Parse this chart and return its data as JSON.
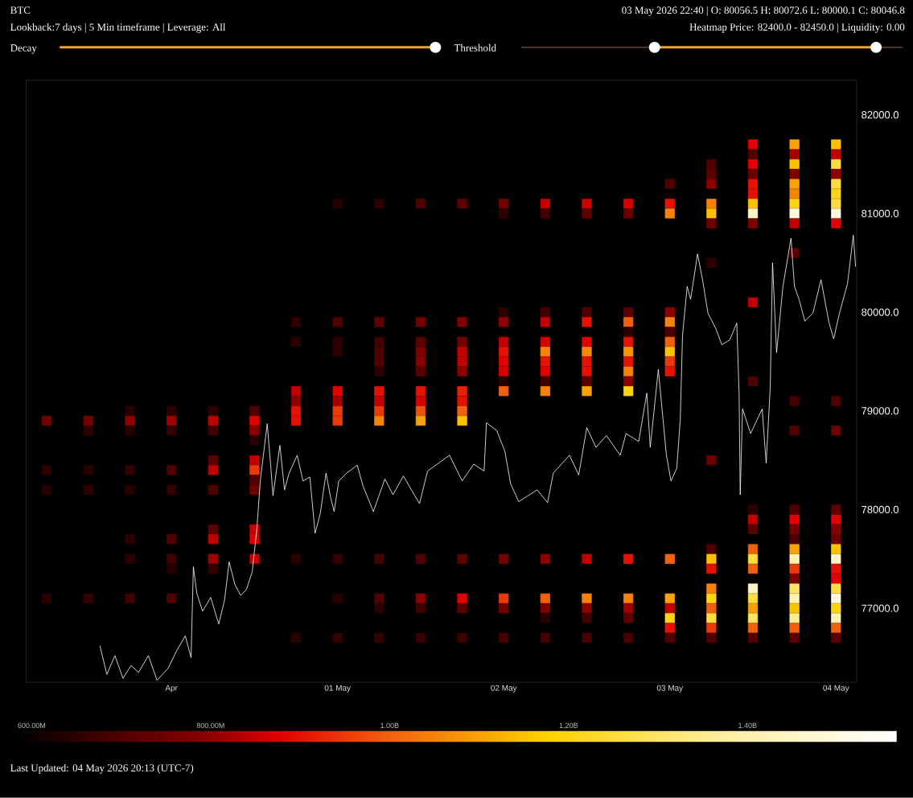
{
  "chart_data": {
    "type": "line",
    "title": "BTC",
    "subtitle": "Lookback:7 days | 5 Min timeframe | Leverage: All",
    "annotations": [
      "03 May 2026 22:40 | O: 80056.5 H: 80072.6 L: 80000.1 C: 80046.8",
      "Heatmap Price: 82400.0 - 82450.0 | Liquidity: 0.00",
      "Decay",
      "Threshold",
      "Last Updated: 04 May 2026 20:13 (UTC-7)"
    ],
    "xlim": [
      "2026-04-29T03:00",
      "2026-05-04T03:00"
    ],
    "xticks": [
      {
        "value": "2026-04-30",
        "label": "Apr"
      },
      {
        "value": "2026-05-01",
        "label": "01 May"
      },
      {
        "value": "2026-05-02",
        "label": "02 May"
      },
      {
        "value": "2026-05-03",
        "label": "03 May"
      },
      {
        "value": "2026-05-04",
        "label": "04 May"
      }
    ],
    "ylim": [
      76250,
      82350
    ],
    "yticks": [
      {
        "value": 77000,
        "label": "77000.0"
      },
      {
        "value": 78000,
        "label": "78000.0"
      },
      {
        "value": 79000,
        "label": "79000.0"
      },
      {
        "value": 80000,
        "label": "80000.0"
      },
      {
        "value": 81000,
        "label": "81000.0"
      },
      {
        "value": 82000,
        "label": "82000.0"
      }
    ],
    "clim": [
      583000000,
      1567000000
    ],
    "cticks": [
      {
        "value": 600000000,
        "label": "600.00M"
      },
      {
        "value": 800000000,
        "label": "800.00M"
      },
      {
        "value": 1000000000,
        "label": "1.00B"
      },
      {
        "value": 1200000000,
        "label": "1.20B"
      },
      {
        "value": 1400000000,
        "label": "1.40B"
      }
    ],
    "series": [
      {
        "type": "scatter",
        "marker": "square",
        "x": [
          "2026-05-03T12:00",
          "2026-05-03T18:00",
          "2026-05-04T00:00"
        ],
        "values": [
          81700,
          81700,
          81700
        ],
        "cvalues": [
          880000000,
          1100000000,
          1150000000
        ],
        "colors": [
          "#e00100",
          "#f9a207",
          "#fdc102"
        ]
      },
      {
        "type": "scatter",
        "marker": "square",
        "x": [
          "2026-05-03T12:00",
          "2026-05-03T18:00",
          "2026-05-04T00:00"
        ],
        "values": [
          81600,
          81600,
          81600
        ],
        "cvalues": [
          700000000,
          820000000,
          850000000
        ],
        "colors": [
          "#4f0000",
          "#a20000",
          "#c20000"
        ]
      },
      {
        "type": "scatter",
        "marker": "square",
        "x": [
          "2026-05-03T06:00",
          "2026-05-03T12:00",
          "2026-05-03T18:00",
          "2026-05-04T00:00"
        ],
        "values": [
          81500,
          81500,
          81500,
          81500
        ],
        "cvalues": [
          700000000,
          880000000,
          1150000000,
          1250000000
        ],
        "colors": [
          "#4f0000",
          "#e00100",
          "#fdc102",
          "#ffdc3e"
        ]
      },
      {
        "type": "scatter",
        "marker": "square",
        "x": [
          "2026-05-03T06:00",
          "2026-05-03T12:00",
          "2026-05-03T18:00",
          "2026-05-04T00:00"
        ],
        "values": [
          81400,
          81400,
          81400,
          81400
        ],
        "cvalues": [
          720000000,
          740000000,
          780000000,
          800000000
        ],
        "colors": [
          "#5c0000",
          "#680000",
          "#800000",
          "#8d0000"
        ]
      },
      {
        "type": "scatter",
        "marker": "square",
        "x": [
          "2026-05-03T00:00",
          "2026-05-03T06:00",
          "2026-05-03T12:00",
          "2026-05-03T18:00",
          "2026-05-04T00:00"
        ],
        "values": [
          81300,
          81300,
          81300,
          81300,
          81300
        ],
        "cvalues": [
          700000000,
          800000000,
          900000000,
          1100000000,
          1250000000
        ],
        "colors": [
          "#4f0000",
          "#8d0000",
          "#e31203",
          "#f9a207",
          "#ffdc3e"
        ]
      },
      {
        "type": "scatter",
        "marker": "square",
        "x": [
          "2026-05-03T12:00",
          "2026-05-03T18:00",
          "2026-05-04T00:00"
        ],
        "values": [
          81200,
          81200,
          81200
        ],
        "cvalues": [
          900000000,
          1050000000,
          1200000000
        ],
        "colors": [
          "#e31203",
          "#f5820b",
          "#ffd416"
        ]
      },
      {
        "type": "scatter",
        "marker": "square",
        "x": [
          "2026-05-01T00:00",
          "2026-05-01T06:00",
          "2026-05-01T12:00",
          "2026-05-01T18:00",
          "2026-05-02T00:00",
          "2026-05-02T06:00",
          "2026-05-02T12:00",
          "2026-05-02T18:00",
          "2026-05-03T00:00",
          "2026-05-03T06:00",
          "2026-05-03T12:00",
          "2026-05-03T18:00",
          "2026-05-04T00:00"
        ],
        "values": [
          81100,
          81100,
          81100,
          81100,
          81100,
          81100,
          81100,
          81100,
          81100,
          81100,
          81100,
          81100,
          81100
        ],
        "cvalues": [
          640000000,
          650000000,
          700000000,
          720000000,
          760000000,
          850000000,
          860000000,
          870000000,
          900000000,
          1050000000,
          1150000000,
          1200000000,
          1250000000
        ],
        "colors": [
          "#270000",
          "#2d0000",
          "#4f0000",
          "#5c0000",
          "#740000",
          "#c20000",
          "#cd0000",
          "#d70000",
          "#e31203",
          "#f5820b",
          "#fdc102",
          "#ffd416",
          "#ffdc3e"
        ]
      },
      {
        "type": "scatter",
        "marker": "square",
        "x": [
          "2026-05-02T00:00",
          "2026-05-02T06:00",
          "2026-05-02T12:00",
          "2026-05-02T18:00",
          "2026-05-03T00:00",
          "2026-05-03T06:00",
          "2026-05-03T12:00",
          "2026-05-03T18:00",
          "2026-05-04T00:00"
        ],
        "values": [
          81000,
          81000,
          81000,
          81000,
          81000,
          81000,
          81000,
          81000,
          81000
        ],
        "cvalues": [
          650000000,
          680000000,
          720000000,
          740000000,
          1050000000,
          1150000000,
          1450000000,
          1500000000,
          1500000000
        ],
        "colors": [
          "#2d0000",
          "#420000",
          "#5c0000",
          "#680000",
          "#f5820b",
          "#fdc102",
          "#fff5c7",
          "#fff9df",
          "#fff9df"
        ]
      },
      {
        "type": "scatter",
        "marker": "square",
        "x": [
          "2026-05-03T06:00",
          "2026-05-03T12:00",
          "2026-05-03T18:00",
          "2026-05-04T00:00"
        ],
        "values": [
          80900,
          80900,
          80900,
          80900
        ],
        "cvalues": [
          750000000,
          780000000,
          850000000,
          880000000
        ],
        "colors": [
          "#6e0000",
          "#800000",
          "#c20000",
          "#e00100"
        ]
      },
      {
        "type": "scatter",
        "marker": "square",
        "x": [
          "2026-05-03T18:00"
        ],
        "values": [
          80600
        ],
        "cvalues": [
          720000000
        ],
        "colors": [
          "#5c0000"
        ]
      },
      {
        "type": "scatter",
        "marker": "square",
        "x": [
          "2026-05-03T06:00"
        ],
        "values": [
          80500
        ],
        "cvalues": [
          650000000
        ],
        "colors": [
          "#2d0000"
        ]
      },
      {
        "type": "scatter",
        "marker": "square",
        "x": [
          "2026-05-03T12:00"
        ],
        "values": [
          80100
        ],
        "cvalues": [
          850000000
        ],
        "colors": [
          "#c20000"
        ]
      },
      {
        "type": "scatter",
        "marker": "square",
        "x": [
          "2026-05-02T00:00",
          "2026-05-02T06:00",
          "2026-05-02T12:00",
          "2026-05-02T18:00",
          "2026-05-03T00:00"
        ],
        "values": [
          80000,
          80000,
          80000,
          80000,
          80000
        ],
        "cvalues": [
          650000000,
          680000000,
          700000000,
          720000000,
          800000000
        ],
        "colors": [
          "#2d0000",
          "#420000",
          "#4f0000",
          "#5c0000",
          "#8d0000"
        ]
      },
      {
        "type": "scatter",
        "marker": "square",
        "x": [
          "2026-04-30T18:00",
          "2026-05-01T00:00",
          "2026-05-01T06:00",
          "2026-05-01T12:00",
          "2026-05-01T18:00",
          "2026-05-02T00:00",
          "2026-05-02T06:00",
          "2026-05-02T12:00",
          "2026-05-02T18:00",
          "2026-05-03T00:00"
        ],
        "values": [
          79900,
          79900,
          79900,
          79900,
          79900,
          79900,
          79900,
          79900,
          79900,
          79900
        ],
        "cvalues": [
          650000000,
          700000000,
          720000000,
          760000000,
          780000000,
          800000000,
          850000000,
          900000000,
          1000000000,
          1050000000
        ],
        "colors": [
          "#2d0000",
          "#4f0000",
          "#5c0000",
          "#740000",
          "#800000",
          "#8d0000",
          "#c20000",
          "#e31203",
          "#f06210",
          "#f5820b"
        ]
      },
      {
        "type": "scatter",
        "marker": "square",
        "x": [
          "2026-05-02T18:00",
          "2026-05-03T00:00"
        ],
        "values": [
          79800,
          79800
        ],
        "cvalues": [
          650000000,
          700000000
        ],
        "colors": [
          "#2d0000",
          "#4f0000"
        ]
      },
      {
        "type": "scatter",
        "marker": "square",
        "x": [
          "2026-04-30T18:00",
          "2026-05-01T00:00",
          "2026-05-01T06:00",
          "2026-05-01T12:00",
          "2026-05-01T18:00",
          "2026-05-02T00:00",
          "2026-05-02T06:00",
          "2026-05-02T12:00",
          "2026-05-02T18:00",
          "2026-05-03T00:00"
        ],
        "values": [
          79700,
          79700,
          79700,
          79700,
          79700,
          79700,
          79700,
          79700,
          79700,
          79700
        ],
        "cvalues": [
          650000000,
          650000000,
          680000000,
          720000000,
          760000000,
          850000000,
          870000000,
          880000000,
          900000000,
          1000000000
        ],
        "colors": [
          "#2d0000",
          "#2d0000",
          "#420000",
          "#5c0000",
          "#740000",
          "#c20000",
          "#d70000",
          "#e00100",
          "#e31203",
          "#f06210"
        ]
      },
      {
        "type": "scatter",
        "marker": "square",
        "x": [
          "2026-05-01T00:00",
          "2026-05-01T06:00",
          "2026-05-01T12:00",
          "2026-05-01T18:00",
          "2026-05-02T00:00",
          "2026-05-02T06:00",
          "2026-05-02T12:00",
          "2026-05-02T18:00",
          "2026-05-03T00:00"
        ],
        "values": [
          79600,
          79600,
          79600,
          79600,
          79600,
          79600,
          79600,
          79600,
          79600
        ],
        "cvalues": [
          650000000,
          700000000,
          780000000,
          850000000,
          900000000,
          1050000000,
          1060000000,
          1080000000,
          1150000000
        ],
        "colors": [
          "#2d0000",
          "#4f0000",
          "#800000",
          "#c20000",
          "#e31203",
          "#f5820b",
          "#f5880a",
          "#f79508",
          "#fdc102"
        ]
      },
      {
        "type": "scatter",
        "marker": "square",
        "x": [
          "2026-05-01T06:00",
          "2026-05-01T12:00",
          "2026-05-01T18:00",
          "2026-05-02T00:00",
          "2026-05-02T06:00",
          "2026-05-02T12:00",
          "2026-05-02T18:00",
          "2026-05-03T00:00"
        ],
        "values": [
          79500,
          79500,
          79500,
          79500,
          79500,
          79500,
          79500,
          79500
        ],
        "cvalues": [
          700000000,
          800000000,
          850000000,
          880000000,
          900000000,
          900000000,
          900000000,
          950000000
        ],
        "colors": [
          "#4f0000",
          "#8d0000",
          "#c20000",
          "#e00100",
          "#e31203",
          "#e31203",
          "#e31203",
          "#ea3a0a"
        ]
      },
      {
        "type": "scatter",
        "marker": "square",
        "x": [
          "2026-05-01T06:00",
          "2026-05-01T12:00",
          "2026-05-01T18:00",
          "2026-05-02T00:00",
          "2026-05-02T06:00",
          "2026-05-02T12:00",
          "2026-05-02T18:00",
          "2026-05-03T00:00"
        ],
        "values": [
          79400,
          79400,
          79400,
          79400,
          79400,
          79400,
          79400,
          79400
        ],
        "cvalues": [
          650000000,
          720000000,
          800000000,
          870000000,
          880000000,
          900000000,
          1050000000,
          900000000
        ],
        "colors": [
          "#2d0000",
          "#5c0000",
          "#8d0000",
          "#d70000",
          "#e00100",
          "#e31203",
          "#f5820b",
          "#e31203"
        ]
      },
      {
        "type": "scatter",
        "marker": "square",
        "x": [
          "2026-05-02T00:00",
          "2026-05-02T06:00",
          "2026-05-02T12:00",
          "2026-05-02T18:00",
          "2026-05-03T12:00"
        ],
        "values": [
          79300,
          79300,
          79300,
          79300,
          79300
        ],
        "cvalues": [
          640000000,
          680000000,
          720000000,
          800000000,
          700000000
        ],
        "colors": [
          "#270000",
          "#420000",
          "#5c0000",
          "#8d0000",
          "#4f0000"
        ]
      },
      {
        "type": "scatter",
        "marker": "square",
        "x": [
          "2026-04-30T18:00",
          "2026-05-01T00:00",
          "2026-05-01T06:00",
          "2026-05-01T12:00",
          "2026-05-01T18:00",
          "2026-05-02T00:00",
          "2026-05-02T06:00",
          "2026-05-02T12:00",
          "2026-05-02T18:00"
        ],
        "values": [
          79200,
          79200,
          79200,
          79200,
          79200,
          79200,
          79200,
          79200,
          79200
        ],
        "cvalues": [
          850000000,
          880000000,
          900000000,
          900000000,
          920000000,
          1000000000,
          1050000000,
          1100000000,
          1200000000
        ],
        "colors": [
          "#c20000",
          "#e00100",
          "#e31203",
          "#e31203",
          "#e62206",
          "#f06210",
          "#f5820b",
          "#f9a207",
          "#ffd416"
        ]
      },
      {
        "type": "scatter",
        "marker": "square",
        "x": [
          "2026-04-30T18:00",
          "2026-05-01T00:00",
          "2026-05-01T06:00",
          "2026-05-01T12:00",
          "2026-05-01T18:00",
          "2026-05-03T18:00",
          "2026-05-04T00:00"
        ],
        "values": [
          79100,
          79100,
          79100,
          79100,
          79100,
          79100,
          79100
        ],
        "cvalues": [
          800000000,
          820000000,
          850000000,
          870000000,
          900000000,
          680000000,
          700000000
        ],
        "colors": [
          "#8d0000",
          "#a20000",
          "#c20000",
          "#d70000",
          "#e31203",
          "#420000",
          "#4f0000"
        ]
      },
      {
        "type": "scatter",
        "marker": "square",
        "x": [
          "2026-04-29T18:00",
          "2026-04-30T00:00",
          "2026-04-30T06:00",
          "2026-04-30T12:00",
          "2026-04-30T18:00",
          "2026-05-01T00:00",
          "2026-05-01T06:00",
          "2026-05-01T12:00",
          "2026-05-01T18:00"
        ],
        "values": [
          79000,
          79000,
          79000,
          79000,
          79000,
          79000,
          79000,
          79000,
          79000
        ],
        "cvalues": [
          640000000,
          650000000,
          650000000,
          700000000,
          900000000,
          950000000,
          950000000,
          980000000,
          1000000000
        ],
        "colors": [
          "#270000",
          "#2d0000",
          "#2d0000",
          "#4f0000",
          "#e31203",
          "#ea3a0a",
          "#ea3a0a",
          "#ee530e",
          "#f06210"
        ]
      },
      {
        "type": "scatter",
        "marker": "square",
        "x": [
          "2026-04-29T06:00",
          "2026-04-29T12:00",
          "2026-04-29T18:00",
          "2026-04-30T00:00",
          "2026-04-30T06:00",
          "2026-04-30T12:00",
          "2026-04-30T18:00",
          "2026-05-01T00:00",
          "2026-05-01T06:00",
          "2026-05-01T12:00",
          "2026-05-01T18:00"
        ],
        "values": [
          78900,
          78900,
          78900,
          78900,
          78900,
          78900,
          78900,
          78900,
          78900,
          78900,
          78900
        ],
        "cvalues": [
          750000000,
          760000000,
          800000000,
          820000000,
          850000000,
          880000000,
          900000000,
          950000000,
          1050000000,
          1100000000,
          1150000000
        ],
        "colors": [
          "#6e0000",
          "#740000",
          "#8d0000",
          "#a20000",
          "#c20000",
          "#e00100",
          "#e31203",
          "#ea3a0a",
          "#f5820b",
          "#f9a207",
          "#fdc102"
        ]
      },
      {
        "type": "scatter",
        "marker": "square",
        "x": [
          "2026-04-29T12:00",
          "2026-04-29T18:00",
          "2026-04-30T00:00",
          "2026-04-30T06:00",
          "2026-04-30T12:00",
          "2026-05-03T18:00",
          "2026-05-04T00:00"
        ],
        "values": [
          78800,
          78800,
          78800,
          78800,
          78800,
          78800,
          78800
        ],
        "cvalues": [
          650000000,
          640000000,
          660000000,
          680000000,
          800000000,
          700000000,
          750000000
        ],
        "colors": [
          "#2d0000",
          "#270000",
          "#340000",
          "#420000",
          "#8d0000",
          "#4f0000",
          "#6e0000"
        ]
      },
      {
        "type": "scatter",
        "marker": "square",
        "x": [
          "2026-04-30T12:00"
        ],
        "values": [
          78700
        ],
        "cvalues": [
          650000000
        ],
        "colors": [
          "#2d0000"
        ]
      },
      {
        "type": "scatter",
        "marker": "square",
        "x": [
          "2026-04-30T06:00",
          "2026-04-30T12:00",
          "2026-05-03T06:00"
        ],
        "values": [
          78500,
          78500,
          78500
        ],
        "cvalues": [
          720000000,
          850000000,
          750000000
        ],
        "colors": [
          "#5c0000",
          "#c20000",
          "#6e0000"
        ]
      },
      {
        "type": "scatter",
        "marker": "square",
        "x": [
          "2026-04-29T06:00",
          "2026-04-29T12:00",
          "2026-04-29T18:00",
          "2026-04-30T00:00",
          "2026-04-30T06:00",
          "2026-04-30T12:00"
        ],
        "values": [
          78400,
          78400,
          78400,
          78400,
          78400,
          78400
        ],
        "cvalues": [
          650000000,
          640000000,
          660000000,
          700000000,
          850000000,
          950000000
        ],
        "colors": [
          "#2d0000",
          "#270000",
          "#340000",
          "#4f0000",
          "#c20000",
          "#ea3a0a"
        ]
      },
      {
        "type": "scatter",
        "marker": "square",
        "x": [
          "2026-04-30T12:00"
        ],
        "values": [
          78300
        ],
        "cvalues": [
          700000000
        ],
        "colors": [
          "#4f0000"
        ]
      },
      {
        "type": "scatter",
        "marker": "square",
        "x": [
          "2026-04-29T06:00",
          "2026-04-29T12:00",
          "2026-04-29T18:00",
          "2026-04-30T00:00",
          "2026-04-30T06:00",
          "2026-04-30T12:00"
        ],
        "values": [
          78200,
          78200,
          78200,
          78200,
          78200,
          78200
        ],
        "cvalues": [
          640000000,
          650000000,
          640000000,
          660000000,
          700000000,
          750000000
        ],
        "colors": [
          "#270000",
          "#2d0000",
          "#270000",
          "#340000",
          "#4f0000",
          "#6e0000"
        ]
      },
      {
        "type": "scatter",
        "marker": "square",
        "x": [
          "2026-05-03T12:00",
          "2026-05-03T18:00",
          "2026-05-04T00:00"
        ],
        "values": [
          78000,
          78000,
          78000
        ],
        "cvalues": [
          650000000,
          700000000,
          720000000
        ],
        "colors": [
          "#2d0000",
          "#4f0000",
          "#5c0000"
        ]
      },
      {
        "type": "scatter",
        "marker": "square",
        "x": [
          "2026-05-03T12:00",
          "2026-05-03T18:00",
          "2026-05-04T00:00"
        ],
        "values": [
          77900,
          77900,
          77900
        ],
        "cvalues": [
          850000000,
          880000000,
          880000000
        ],
        "colors": [
          "#c20000",
          "#e00100",
          "#e00100"
        ]
      },
      {
        "type": "scatter",
        "marker": "square",
        "x": [
          "2026-04-30T06:00",
          "2026-04-30T12:00",
          "2026-05-03T12:00",
          "2026-05-03T18:00",
          "2026-05-04T00:00"
        ],
        "values": [
          77800,
          77800,
          77800,
          77800,
          77800
        ],
        "cvalues": [
          720000000,
          850000000,
          720000000,
          760000000,
          780000000
        ],
        "colors": [
          "#5c0000",
          "#c20000",
          "#5c0000",
          "#740000",
          "#800000"
        ]
      },
      {
        "type": "scatter",
        "marker": "square",
        "x": [
          "2026-04-29T18:00",
          "2026-04-30T00:00",
          "2026-04-30T06:00",
          "2026-04-30T12:00",
          "2026-05-03T18:00",
          "2026-05-04T00:00"
        ],
        "values": [
          77700,
          77700,
          77700,
          77700,
          77700,
          77700
        ],
        "cvalues": [
          650000000,
          700000000,
          850000000,
          870000000,
          700000000,
          750000000
        ],
        "colors": [
          "#2d0000",
          "#4f0000",
          "#c20000",
          "#d70000",
          "#4f0000",
          "#6e0000"
        ]
      },
      {
        "type": "scatter",
        "marker": "square",
        "x": [
          "2026-05-03T06:00",
          "2026-05-03T12:00",
          "2026-05-03T18:00",
          "2026-05-04T00:00"
        ],
        "values": [
          77600,
          77600,
          77600,
          77600
        ],
        "cvalues": [
          700000000,
          1000000000,
          1100000000,
          1150000000
        ],
        "colors": [
          "#4f0000",
          "#f06210",
          "#f9a207",
          "#fdc102"
        ]
      },
      {
        "type": "scatter",
        "marker": "square",
        "x": [
          "2026-04-29T18:00",
          "2026-04-30T00:00",
          "2026-04-30T06:00",
          "2026-04-30T12:00",
          "2026-04-30T18:00",
          "2026-05-01T00:00",
          "2026-05-01T06:00",
          "2026-05-01T12:00",
          "2026-05-01T18:00",
          "2026-05-02T00:00",
          "2026-05-02T06:00",
          "2026-05-02T12:00",
          "2026-05-02T18:00",
          "2026-05-03T00:00",
          "2026-05-03T06:00",
          "2026-05-03T12:00",
          "2026-05-03T18:00",
          "2026-05-04T00:00"
        ],
        "values": [
          77500,
          77500,
          77500,
          77500,
          77500,
          77500,
          77500,
          77500,
          77500,
          77500,
          77500,
          77500,
          77500,
          77500,
          77500,
          77500,
          77500,
          77500
        ],
        "cvalues": [
          650000000,
          680000000,
          820000000,
          850000000,
          640000000,
          660000000,
          680000000,
          700000000,
          720000000,
          760000000,
          800000000,
          850000000,
          900000000,
          1000000000,
          1150000000,
          1250000000,
          1400000000,
          1450000000
        ],
        "colors": [
          "#2d0000",
          "#420000",
          "#a20000",
          "#c20000",
          "#270000",
          "#340000",
          "#420000",
          "#4f0000",
          "#5c0000",
          "#740000",
          "#8d0000",
          "#c20000",
          "#e31203",
          "#f06210",
          "#fdc102",
          "#ffdc3e",
          "#fff1ae",
          "#fff5c7"
        ]
      },
      {
        "type": "scatter",
        "marker": "square",
        "x": [
          "2026-04-30T00:00",
          "2026-04-30T06:00",
          "2026-05-03T06:00",
          "2026-05-03T12:00",
          "2026-05-03T18:00",
          "2026-05-04T00:00"
        ],
        "values": [
          77400,
          77400,
          77400,
          77400,
          77400,
          77400
        ],
        "cvalues": [
          640000000,
          660000000,
          900000000,
          1000000000,
          950000000,
          900000000
        ],
        "colors": [
          "#270000",
          "#340000",
          "#e31203",
          "#f06210",
          "#ea3a0a",
          "#e31203"
        ]
      },
      {
        "type": "scatter",
        "marker": "square",
        "x": [
          "2026-05-03T18:00",
          "2026-05-04T00:00"
        ],
        "values": [
          77300,
          77300
        ],
        "cvalues": [
          780000000,
          880000000
        ],
        "colors": [
          "#800000",
          "#e00100"
        ]
      },
      {
        "type": "scatter",
        "marker": "square",
        "x": [
          "2026-05-03T06:00",
          "2026-05-03T12:00",
          "2026-05-03T18:00",
          "2026-05-04T00:00"
        ],
        "values": [
          77200,
          77200,
          77200,
          77200
        ],
        "cvalues": [
          1050000000,
          1450000000,
          1300000000,
          1250000000
        ],
        "colors": [
          "#f5820b",
          "#fff5c7",
          "#ffe367",
          "#ffdc3e"
        ]
      },
      {
        "type": "scatter",
        "marker": "square",
        "x": [
          "2026-04-29T06:00",
          "2026-04-29T12:00",
          "2026-04-29T18:00",
          "2026-04-30T00:00",
          "2026-05-01T00:00",
          "2026-05-01T06:00",
          "2026-05-01T12:00",
          "2026-05-01T18:00",
          "2026-05-02T00:00",
          "2026-05-02T06:00",
          "2026-05-02T12:00",
          "2026-05-02T18:00",
          "2026-05-03T00:00",
          "2026-05-03T06:00",
          "2026-05-03T12:00",
          "2026-05-03T18:00",
          "2026-05-04T00:00"
        ],
        "values": [
          77100,
          77100,
          77100,
          77100,
          77100,
          77100,
          77100,
          77100,
          77100,
          77100,
          77100,
          77100,
          77100,
          77100,
          77100,
          77100,
          77100
        ],
        "cvalues": [
          650000000,
          660000000,
          680000000,
          700000000,
          640000000,
          700000000,
          800000000,
          880000000,
          950000000,
          1000000000,
          1050000000,
          1050000000,
          1100000000,
          1200000000,
          1250000000,
          1400000000,
          1500000000
        ],
        "colors": [
          "#2d0000",
          "#340000",
          "#420000",
          "#4f0000",
          "#270000",
          "#4f0000",
          "#8d0000",
          "#e00100",
          "#ea3a0a",
          "#f06210",
          "#f5820b",
          "#f5820b",
          "#f9a207",
          "#ffd416",
          "#ffdc3e",
          "#fff1ae",
          "#fff9df"
        ]
      },
      {
        "type": "scatter",
        "marker": "square",
        "x": [
          "2026-05-01T06:00",
          "2026-05-01T12:00",
          "2026-05-01T18:00",
          "2026-05-02T00:00",
          "2026-05-02T06:00",
          "2026-05-02T12:00",
          "2026-05-02T18:00",
          "2026-05-03T00:00",
          "2026-05-03T06:00",
          "2026-05-03T12:00",
          "2026-05-03T18:00",
          "2026-05-04T00:00"
        ],
        "values": [
          77000,
          77000,
          77000,
          77000,
          77000,
          77000,
          77000,
          77000,
          77000,
          77000,
          77000,
          77000
        ],
        "cvalues": [
          650000000,
          680000000,
          720000000,
          760000000,
          780000000,
          800000000,
          820000000,
          850000000,
          1000000000,
          1100000000,
          1150000000,
          1200000000
        ],
        "colors": [
          "#2d0000",
          "#420000",
          "#5c0000",
          "#740000",
          "#800000",
          "#8d0000",
          "#a20000",
          "#c20000",
          "#f06210",
          "#f9a207",
          "#fdc102",
          "#ffd416"
        ]
      },
      {
        "type": "scatter",
        "marker": "square",
        "x": [
          "2026-05-02T06:00",
          "2026-05-02T12:00",
          "2026-05-02T18:00",
          "2026-05-03T00:00",
          "2026-05-03T06:00",
          "2026-05-03T12:00",
          "2026-05-03T18:00",
          "2026-05-04T00:00"
        ],
        "values": [
          76900,
          76900,
          76900,
          76900,
          76900,
          76900,
          76900,
          76900
        ],
        "cvalues": [
          640000000,
          680000000,
          720000000,
          1200000000,
          1250000000,
          1300000000,
          1350000000,
          1400000000
        ],
        "colors": [
          "#270000",
          "#420000",
          "#5c0000",
          "#ffd416",
          "#ffdc3e",
          "#ffe367",
          "#ffeb90",
          "#fff1ae"
        ]
      },
      {
        "type": "scatter",
        "marker": "square",
        "x": [
          "2026-05-03T00:00",
          "2026-05-03T06:00",
          "2026-05-03T12:00",
          "2026-05-03T18:00",
          "2026-05-04T00:00"
        ],
        "values": [
          76800,
          76800,
          76800,
          76800,
          76800
        ],
        "cvalues": [
          900000000,
          950000000,
          1000000000,
          1000000000,
          1000000000
        ],
        "colors": [
          "#e31203",
          "#ea3a0a",
          "#f06210",
          "#f06210",
          "#f06210"
        ]
      },
      {
        "type": "scatter",
        "marker": "square",
        "x": [
          "2026-04-30T18:00",
          "2026-05-01T00:00",
          "2026-05-01T06:00",
          "2026-05-01T12:00",
          "2026-05-01T18:00",
          "2026-05-02T00:00",
          "2026-05-02T06:00",
          "2026-05-02T12:00",
          "2026-05-02T18:00",
          "2026-05-03T00:00",
          "2026-05-03T06:00",
          "2026-05-03T12:00",
          "2026-05-03T18:00",
          "2026-05-04T00:00"
        ],
        "values": [
          76700,
          76700,
          76700,
          76700,
          76700,
          76700,
          76700,
          76700,
          76700,
          76700,
          76700,
          76700,
          76700,
          76700
        ],
        "cvalues": [
          650000000,
          660000000,
          660000000,
          670000000,
          670000000,
          680000000,
          680000000,
          690000000,
          690000000,
          700000000,
          700000000,
          710000000,
          720000000,
          720000000
        ],
        "colors": [
          "#2d0000",
          "#340000",
          "#340000",
          "#3b0000",
          "#3b0000",
          "#420000",
          "#420000",
          "#480000",
          "#480000",
          "#4f0000",
          "#4f0000",
          "#550000",
          "#5c0000",
          "#5c0000"
        ]
      },
      {
        "type": "line",
        "color": "#ffffff",
        "x": [
          "2026-04-29T13:40",
          "2026-04-29T14:40",
          "2026-04-29T15:50",
          "2026-04-29T17:00",
          "2026-04-29T18:10",
          "2026-04-29T19:15",
          "2026-04-29T20:40",
          "2026-04-29T21:55",
          "2026-04-29T23:30",
          "2026-04-30T00:50",
          "2026-04-30T02:00",
          "2026-04-30T02:50",
          "2026-04-30T03:10",
          "2026-04-30T03:40",
          "2026-04-30T04:30",
          "2026-04-30T05:40",
          "2026-04-30T06:50",
          "2026-04-30T07:40",
          "2026-04-30T08:20",
          "2026-04-30T09:10",
          "2026-04-30T10:00",
          "2026-04-30T10:50",
          "2026-04-30T11:40",
          "2026-04-30T12:20",
          "2026-04-30T12:50",
          "2026-04-30T13:50",
          "2026-04-30T14:20",
          "2026-04-30T14:40",
          "2026-04-30T15:40",
          "2026-04-30T16:20",
          "2026-04-30T17:00",
          "2026-04-30T18:10",
          "2026-04-30T19:00",
          "2026-04-30T20:00",
          "2026-04-30T20:45",
          "2026-04-30T21:30",
          "2026-04-30T22:20",
          "2026-04-30T23:00",
          "2026-04-30T23:30",
          "2026-05-01T00:10",
          "2026-05-01T01:20",
          "2026-05-01T02:50",
          "2026-05-01T03:40",
          "2026-05-01T05:10",
          "2026-05-01T06:50",
          "2026-05-01T08:00",
          "2026-05-01T09:30",
          "2026-05-01T11:50",
          "2026-05-01T13:00",
          "2026-05-01T16:10",
          "2026-05-01T18:00",
          "2026-05-01T19:40",
          "2026-05-01T21:10",
          "2026-05-01T21:30",
          "2026-05-01T23:00",
          "2026-05-02T00:10",
          "2026-05-02T01:00",
          "2026-05-02T02:10",
          "2026-05-02T04:50",
          "2026-05-02T06:20",
          "2026-05-02T07:10",
          "2026-05-02T09:30",
          "2026-05-02T10:50",
          "2026-05-02T12:00",
          "2026-05-02T13:20",
          "2026-05-02T14:50",
          "2026-05-02T16:50",
          "2026-05-02T17:40",
          "2026-05-02T19:30",
          "2026-05-02T20:40",
          "2026-05-02T21:10",
          "2026-05-02T22:20",
          "2026-05-02T23:30",
          "2026-05-03T00:10",
          "2026-05-03T01:00",
          "2026-05-03T01:30",
          "2026-05-03T01:50",
          "2026-05-03T02:30",
          "2026-05-03T03:00",
          "2026-05-03T04:00",
          "2026-05-03T04:45",
          "2026-05-03T05:30",
          "2026-05-03T06:40",
          "2026-05-03T07:30",
          "2026-05-03T08:40",
          "2026-05-03T09:40",
          "2026-05-03T10:00",
          "2026-05-03T10:10",
          "2026-05-03T10:30",
          "2026-05-03T11:40",
          "2026-05-03T13:20",
          "2026-05-03T13:55",
          "2026-05-03T14:30",
          "2026-05-03T14:50",
          "2026-05-03T15:25",
          "2026-05-03T16:20",
          "2026-05-03T17:30",
          "2026-05-03T18:00",
          "2026-05-03T18:40",
          "2026-05-03T19:30",
          "2026-05-03T20:40",
          "2026-05-03T21:50",
          "2026-05-03T23:00",
          "2026-05-03T23:40",
          "2026-05-04T00:30",
          "2026-05-04T01:40",
          "2026-05-04T02:30",
          "2026-05-04T02:50"
        ],
        "values": [
          76620,
          76330,
          76520,
          76290,
          76420,
          76350,
          76520,
          76270,
          76390,
          76580,
          76720,
          76500,
          77420,
          77150,
          76970,
          77110,
          76840,
          77080,
          77470,
          77240,
          77130,
          77190,
          77370,
          77800,
          78290,
          78870,
          78450,
          78140,
          78650,
          78200,
          78370,
          78550,
          78290,
          78330,
          77760,
          77960,
          78370,
          78120,
          77980,
          78290,
          78370,
          78450,
          78240,
          77980,
          78310,
          78150,
          78340,
          78060,
          78390,
          78550,
          78290,
          78460,
          78390,
          78880,
          78800,
          78590,
          78260,
          78080,
          78200,
          78070,
          78370,
          78550,
          78350,
          78830,
          78630,
          78750,
          78550,
          78770,
          78690,
          79180,
          78630,
          79420,
          78550,
          78290,
          78420,
          78910,
          79770,
          80260,
          80130,
          80590,
          80320,
          79990,
          79830,
          79670,
          79720,
          79890,
          79180,
          78150,
          79020,
          78770,
          79020,
          78470,
          79240,
          80500,
          79590,
          80260,
          80750,
          80260,
          80130,
          79910,
          79990,
          80330,
          79890,
          79730,
          79990,
          80290,
          80780,
          80460
        ]
      }
    ]
  }
}
